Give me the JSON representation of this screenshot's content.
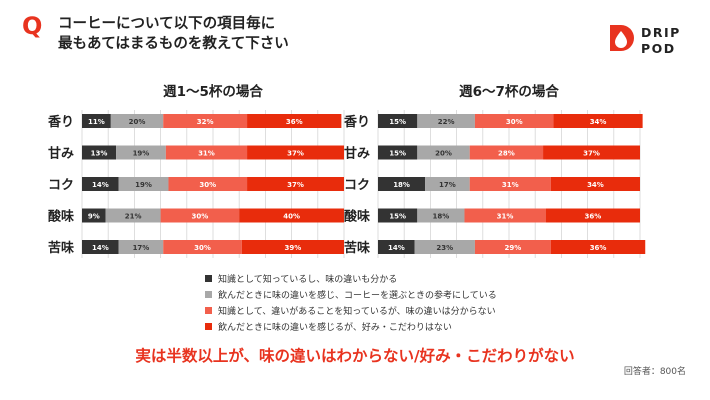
{
  "question": {
    "icon": "Q",
    "line1": "コーヒーについて以下の項目毎に",
    "line2": "最もあてはまるものを教えて下さい"
  },
  "brand": {
    "line1": "DRIP",
    "line2": "POD",
    "icon": "drop-logo-icon",
    "color": "#e8331f"
  },
  "colors": {
    "dark": "#333333",
    "gray": "#a8a8a8",
    "salmon": "#f25f4c",
    "red": "#e82c0c"
  },
  "legend": [
    {
      "label": "知識として知っているし、味の違いも分かる",
      "color": "#333333"
    },
    {
      "label": "飲んだときに味の違いを感じ、コーヒーを選ぶときの参考にしている",
      "color": "#a8a8a8"
    },
    {
      "label": "知識として、違いがあることを知っているが、味の違いは分からない",
      "color": "#f25f4c"
    },
    {
      "label": "飲んだときに味の違いを感じるが、好み・こだわりはない",
      "color": "#e82c0c"
    }
  ],
  "conclusion": "実は半数以上が、味の違いはわからない/好み・こだわりがない",
  "respondents": "回答者：800名",
  "chart_data": [
    {
      "type": "bar",
      "orientation": "horizontal",
      "stacked": true,
      "title": "週1〜5杯の場合",
      "categories": [
        "香り",
        "甘み",
        "コク",
        "酸味",
        "苦味"
      ],
      "series": [
        {
          "name": "知識として知っているし、味の違いも分かる",
          "values": [
            11,
            13,
            14,
            9,
            14
          ]
        },
        {
          "name": "飲んだときに味の違いを感じ、コーヒーを選ぶときの参考にしている",
          "values": [
            20,
            19,
            19,
            21,
            17
          ]
        },
        {
          "name": "知識として、違いがあることを知っているが、味の違いは分からない",
          "values": [
            32,
            31,
            30,
            30,
            30
          ]
        },
        {
          "name": "飲んだときに味の違いを感じるが、好み・こだわりはない",
          "values": [
            36,
            37,
            37,
            40,
            39
          ]
        }
      ],
      "xlim": [
        0,
        100
      ],
      "grid": true
    },
    {
      "type": "bar",
      "orientation": "horizontal",
      "stacked": true,
      "title": "週6〜7杯の場合",
      "categories": [
        "香り",
        "甘み",
        "コク",
        "酸味",
        "苦味"
      ],
      "series": [
        {
          "name": "知識として知っているし、味の違いも分かる",
          "values": [
            15,
            15,
            18,
            15,
            14
          ]
        },
        {
          "name": "飲んだときに味の違いを感じ、コーヒーを選ぶときの参考にしている",
          "values": [
            22,
            20,
            17,
            18,
            23
          ]
        },
        {
          "name": "知識として、違いがあることを知っているが、味の違いは分からない",
          "values": [
            30,
            28,
            31,
            31,
            29
          ]
        },
        {
          "name": "飲んだときに味の違いを感じるが、好み・こだわりはない",
          "values": [
            34,
            37,
            34,
            36,
            36
          ]
        }
      ],
      "xlim": [
        0,
        100
      ],
      "grid": true
    }
  ]
}
